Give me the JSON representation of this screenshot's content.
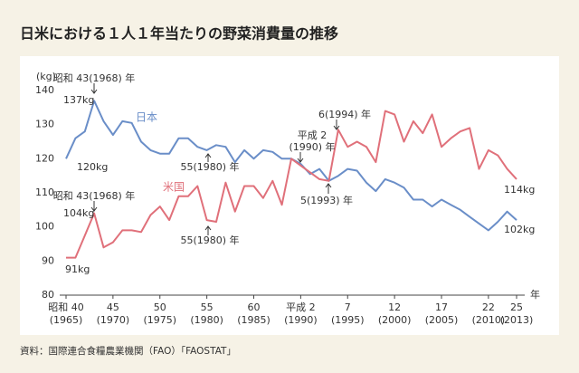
{
  "chart_data": {
    "type": "line",
    "title": "日米における１人１年当たりの野菜消費量の推移",
    "source": "資料：国際連合食糧農業機関（FAO）「FAOSTAT」",
    "y_unit": "(kg)",
    "x_unit": "年",
    "x": [
      1965,
      1966,
      1967,
      1968,
      1969,
      1970,
      1971,
      1972,
      1973,
      1974,
      1975,
      1976,
      1977,
      1978,
      1979,
      1980,
      1981,
      1982,
      1983,
      1984,
      1985,
      1986,
      1987,
      1988,
      1989,
      1990,
      1991,
      1992,
      1993,
      1994,
      1995,
      1996,
      1997,
      1998,
      1999,
      2000,
      2001,
      2002,
      2003,
      2004,
      2005,
      2006,
      2007,
      2008,
      2009,
      2010,
      2011,
      2012,
      2013
    ],
    "xlim": [
      1965,
      2013
    ],
    "xticks": [
      {
        "value": 1965,
        "label": "昭和 40"
      },
      {
        "value": 1970,
        "label": "45"
      },
      {
        "value": 1975,
        "label": "50"
      },
      {
        "value": 1980,
        "label": "55"
      },
      {
        "value": 1985,
        "label": "60"
      },
      {
        "value": 1990,
        "label": "平成 2"
      },
      {
        "value": 1995,
        "label": "7"
      },
      {
        "value": 2000,
        "label": "12"
      },
      {
        "value": 2005,
        "label": "17"
      },
      {
        "value": 2010,
        "label": "22"
      },
      {
        "value": 2013,
        "label": "25"
      }
    ],
    "xtick_sublabels": [
      "(1965)",
      "(1970)",
      "(1975)",
      "(1980)",
      "(1985)",
      "(1990)",
      "(1995)",
      "(2000)",
      "(2005)",
      "(2010)",
      "(2013)"
    ],
    "ylim": [
      80,
      140
    ],
    "yticks": [
      80,
      90,
      100,
      110,
      120,
      130,
      140
    ],
    "grid": false,
    "series": [
      {
        "name": "日本",
        "color": "#6a8ec8",
        "values": [
          120,
          126,
          128,
          137,
          131,
          127,
          131,
          130.5,
          125,
          122.5,
          121.5,
          121.5,
          126,
          126,
          123.5,
          122.5,
          124,
          123.5,
          119,
          122.5,
          120,
          122.5,
          122,
          120,
          120,
          118.5,
          115.5,
          117,
          113.5,
          115,
          117,
          116.5,
          113,
          110.5,
          114,
          113,
          111.5,
          108,
          108,
          106,
          108,
          106.5,
          105,
          103,
          101,
          99,
          101.5,
          104.5,
          102
        ],
        "value_labels": [
          "120kg",
          null,
          null,
          "137kg",
          null,
          null,
          null,
          null,
          null,
          null,
          null,
          null,
          null,
          null,
          null,
          null,
          null,
          null,
          null,
          null,
          null,
          null,
          null,
          null,
          null,
          null,
          null,
          null,
          null,
          null,
          null,
          null,
          null,
          null,
          null,
          null,
          null,
          null,
          null,
          null,
          null,
          null,
          null,
          null,
          null,
          null,
          null,
          null,
          "102kg"
        ]
      },
      {
        "name": "米国",
        "color": "#e0707a",
        "values": [
          91,
          91,
          97.5,
          104,
          94,
          95.5,
          99,
          99,
          98.5,
          103.5,
          106,
          102,
          109,
          109,
          112,
          102,
          101.5,
          113,
          104.5,
          112,
          112,
          108.5,
          113.5,
          106.5,
          120,
          118,
          116,
          114,
          113.5,
          128.5,
          123.5,
          125,
          123.5,
          119,
          134,
          133,
          125,
          131,
          127.5,
          133,
          123.5,
          126,
          128,
          129,
          117,
          122.5,
          121,
          117,
          114
        ],
        "value_labels": [
          "91kg",
          null,
          null,
          "104kg",
          null,
          null,
          null,
          null,
          null,
          null,
          null,
          null,
          null,
          null,
          null,
          null,
          null,
          null,
          null,
          null,
          null,
          null,
          null,
          null,
          null,
          null,
          null,
          null,
          null,
          null,
          null,
          null,
          null,
          null,
          null,
          null,
          null,
          null,
          null,
          null,
          null,
          null,
          null,
          null,
          null,
          null,
          null,
          null,
          "114kg"
        ]
      }
    ],
    "annotations": [
      "昭和 43(1968) 年",
      "55(1980) 年",
      "平成 2",
      "(1990) 年",
      "6(1994) 年",
      "5(1993) 年",
      "昭和 43(1968) 年",
      "55(1980) 年"
    ]
  }
}
